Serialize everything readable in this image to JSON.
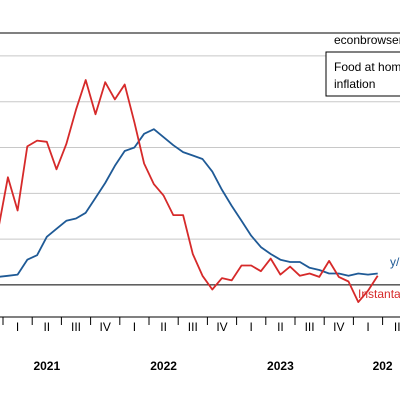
{
  "chart_data": {
    "type": "line",
    "watermark": "econbrowser.com",
    "legend_lines": [
      "Food at home",
      "inflation"
    ],
    "x_domain": [
      "2020-11",
      "2024-03"
    ],
    "y_range": [
      -2.8,
      22.0
    ],
    "zero_line": 0,
    "quarter_ticks": [
      {
        "t": 0,
        "label": "I"
      },
      {
        "t": 1,
        "label": "II"
      },
      {
        "t": 2,
        "label": "III"
      },
      {
        "t": 3,
        "label": "IV"
      },
      {
        "t": 4,
        "label": "I"
      },
      {
        "t": 5,
        "label": "II"
      },
      {
        "t": 6,
        "label": "III"
      },
      {
        "t": 7,
        "label": "IV"
      },
      {
        "t": 8,
        "label": "I"
      },
      {
        "t": 9,
        "label": "II"
      },
      {
        "t": 10,
        "label": "III"
      },
      {
        "t": 11,
        "label": "IV"
      },
      {
        "t": 12,
        "label": "I"
      },
      {
        "t": 13,
        "label": "II"
      }
    ],
    "years": [
      {
        "label": "2021",
        "t": 1.5
      },
      {
        "label": "2022",
        "t": 5.5
      },
      {
        "label": "2023",
        "t": 9.5
      },
      {
        "label": "202",
        "t": 13.0
      }
    ],
    "series": [
      {
        "name": "y/y",
        "color": "#1f5a96",
        "x": [
          "2020-11",
          "2020-12",
          "2021-01",
          "2021-02",
          "2021-03",
          "2021-04",
          "2021-05",
          "2021-06",
          "2021-07",
          "2021-08",
          "2021-09",
          "2021-10",
          "2021-11",
          "2021-12",
          "2022-01",
          "2022-02",
          "2022-03",
          "2022-04",
          "2022-05",
          "2022-06",
          "2022-07",
          "2022-08",
          "2022-09",
          "2022-10",
          "2022-11",
          "2022-12",
          "2023-01",
          "2023-02",
          "2023-03",
          "2023-04",
          "2023-05",
          "2023-06",
          "2023-07",
          "2023-08",
          "2023-09",
          "2023-10",
          "2023-11",
          "2023-12",
          "2024-01",
          "2024-02",
          "2024-03"
        ],
        "y": [
          1.2,
          0.7,
          0.8,
          0.9,
          2.2,
          2.6,
          4.2,
          4.9,
          5.6,
          5.8,
          6.3,
          7.6,
          8.9,
          10.4,
          11.7,
          12.0,
          13.2,
          13.6,
          12.9,
          12.2,
          11.6,
          11.3,
          11.0,
          9.9,
          8.3,
          6.9,
          5.6,
          4.3,
          3.3,
          2.7,
          2.2,
          2.0,
          2.0,
          1.5,
          1.3,
          1.0,
          1.0,
          0.8,
          1.0,
          0.9,
          1.0
        ]
      },
      {
        "name": "Instantaneous",
        "color": "#d62a2a",
        "x": [
          "2020-11",
          "2020-12",
          "2021-01",
          "2021-02",
          "2021-03",
          "2021-04",
          "2021-05",
          "2021-06",
          "2021-07",
          "2021-08",
          "2021-09",
          "2021-10",
          "2021-11",
          "2021-12",
          "2022-01",
          "2022-02",
          "2022-03",
          "2022-04",
          "2022-05",
          "2022-06",
          "2022-07",
          "2022-08",
          "2022-09",
          "2022-10",
          "2022-11",
          "2022-12",
          "2023-01",
          "2023-02",
          "2023-03",
          "2023-04",
          "2023-05",
          "2023-06",
          "2023-07",
          "2023-08",
          "2023-09",
          "2023-10",
          "2023-11",
          "2023-12",
          "2024-01",
          "2024-02",
          "2024-03"
        ],
        "y": [
          3.9,
          4.8,
          9.4,
          6.5,
          12.1,
          12.6,
          12.5,
          10.1,
          12.3,
          15.3,
          17.9,
          14.9,
          17.7,
          16.2,
          17.5,
          14.2,
          10.6,
          8.8,
          7.8,
          6.1,
          6.1,
          2.7,
          0.8,
          -0.4,
          0.6,
          0.4,
          1.7,
          1.7,
          1.2,
          2.3,
          0.9,
          1.6,
          0.8,
          1.0,
          0.7,
          2.1,
          0.7,
          0.3,
          -1.5,
          -0.5,
          0.8
        ]
      }
    ],
    "series_labels": {
      "yy": "y/",
      "inst": "Instanta"
    }
  }
}
